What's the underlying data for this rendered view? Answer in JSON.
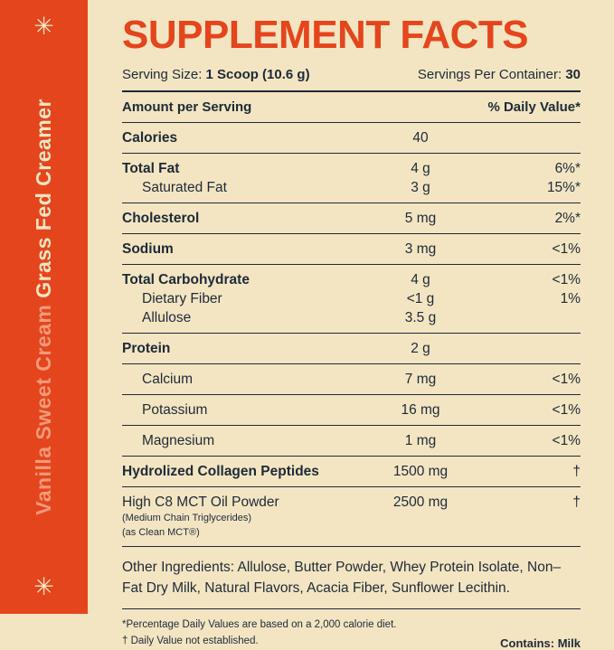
{
  "sidebar": {
    "asterisk": "✳",
    "subtitle": "Vanilla Sweet Cream ",
    "title": "Grass Fed Creamer",
    "colors": {
      "background": "#e5451c",
      "subtitle": "#f29a7b",
      "title": "#f4e5c2"
    }
  },
  "header": {
    "title": "SUPPLEMENT FACTS",
    "serving_size_label": "Serving Size:",
    "serving_size_value": "1 Scoop (10.6 g)",
    "servings_label": "Servings Per Container:",
    "servings_value": "30"
  },
  "table": {
    "col_amount": "Amount per Serving",
    "col_dv": "% Daily Value*",
    "rows": [
      {
        "name": "Calories",
        "amount": "40",
        "dv": ""
      },
      {
        "name": "Total Fat",
        "amount": "4 g",
        "dv": "6%*"
      },
      {
        "name": "Saturated Fat",
        "amount": "3 g",
        "dv": "15%*"
      },
      {
        "name": "Cholesterol",
        "amount": "5 mg",
        "dv": "2%*"
      },
      {
        "name": "Sodium",
        "amount": "3 mg",
        "dv": "<1%"
      },
      {
        "name": "Total Carbohydrate",
        "amount": "4 g",
        "dv": "<1%"
      },
      {
        "name": "Dietary Fiber",
        "amount": "<1 g",
        "dv": "1%"
      },
      {
        "name": "Allulose",
        "amount": "3.5 g",
        "dv": ""
      },
      {
        "name": "Protein",
        "amount": "2 g",
        "dv": ""
      },
      {
        "name": "Calcium",
        "amount": "7 mg",
        "dv": "<1%"
      },
      {
        "name": "Potassium",
        "amount": "16 mg",
        "dv": "<1%"
      },
      {
        "name": "Magnesium",
        "amount": "1 mg",
        "dv": "<1%"
      },
      {
        "name": "Hydrolized Collagen Peptides",
        "amount": "1500 mg",
        "dv": "†"
      },
      {
        "name": "High C8 MCT Oil Powder",
        "amount": "2500 mg",
        "dv": "†",
        "sub": [
          "(Medium Chain Triglycerides)",
          "(as Clean MCT®)"
        ]
      }
    ]
  },
  "other_ingredients": "Other Ingredients: Allulose, Butter Powder, Whey Protein Isolate, Non–Fat Dry Milk, Natural Flavors, Acacia Fiber, Sunflower Lecithin.",
  "footnotes": {
    "line1": "*Percentage Daily Values are based on a 2,000 calorie diet.",
    "line2": "† Daily Value not established.",
    "contains": "Contains: Milk"
  },
  "colors": {
    "background": "#f4e5c2",
    "accent": "#e5451c",
    "text": "#1c2a38"
  }
}
